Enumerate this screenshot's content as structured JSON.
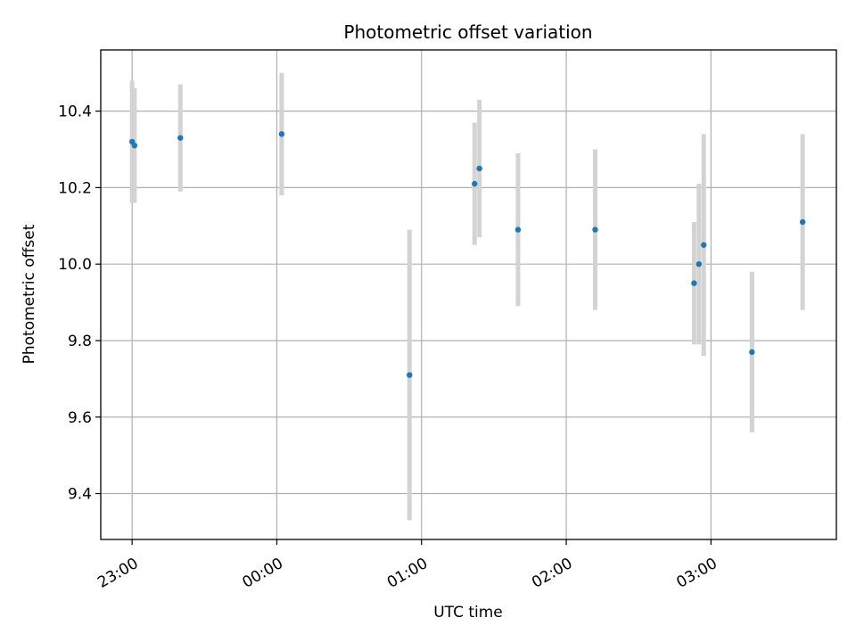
{
  "chart_data": {
    "type": "scatter",
    "title": "Photometric offset variation",
    "xlabel": "UTC time",
    "ylabel": "Photometric offset",
    "grid": true,
    "legend": "none",
    "x_unit": "UTC time",
    "xlim": [
      "22:47",
      "03:52"
    ],
    "ylim": [
      9.28,
      10.56
    ],
    "x_ticks": [
      "23:00",
      "00:00",
      "01:00",
      "02:00",
      "03:00"
    ],
    "y_ticks": [
      "9.4",
      "9.6",
      "9.8",
      "10.0",
      "10.2",
      "10.4"
    ],
    "series": [
      {
        "marker_color": "#1f77b4",
        "errorbar_color": "#d3d3d3",
        "points": [
          {
            "x": "23:00",
            "y": 10.32,
            "err": 0.16
          },
          {
            "x": "23:01",
            "y": 10.31,
            "err": 0.15
          },
          {
            "x": "23:20",
            "y": 10.33,
            "err": 0.14
          },
          {
            "x": "00:02",
            "y": 10.34,
            "err": 0.16
          },
          {
            "x": "00:55",
            "y": 9.71,
            "err": 0.38
          },
          {
            "x": "01:22",
            "y": 10.21,
            "err": 0.16
          },
          {
            "x": "01:24",
            "y": 10.25,
            "err": 0.18
          },
          {
            "x": "01:40",
            "y": 10.09,
            "err": 0.2
          },
          {
            "x": "02:12",
            "y": 10.09,
            "err": 0.21
          },
          {
            "x": "02:53",
            "y": 9.95,
            "err": 0.16
          },
          {
            "x": "02:55",
            "y": 10.0,
            "err": 0.21
          },
          {
            "x": "02:57",
            "y": 10.05,
            "err": 0.29
          },
          {
            "x": "03:17",
            "y": 9.77,
            "err": 0.21
          },
          {
            "x": "03:38",
            "y": 10.11,
            "err": 0.23
          }
        ]
      }
    ]
  }
}
